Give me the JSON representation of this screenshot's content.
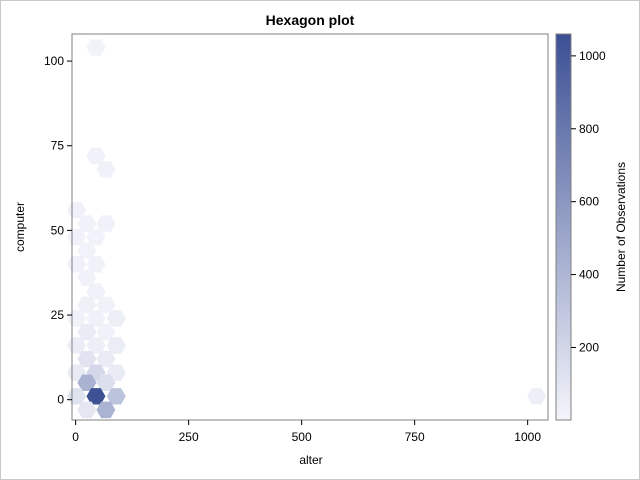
{
  "chart_data": {
    "type": "hexbin",
    "title": "Hexagon plot",
    "xlabel": "alter",
    "ylabel": "computer",
    "xlim": [
      -8,
      1045
    ],
    "ylim": [
      -6,
      108
    ],
    "xticks": [
      0,
      250,
      500,
      750,
      1000
    ],
    "yticks": [
      0,
      25,
      50,
      75,
      100
    ],
    "colorbar": {
      "label": "Number of Observations",
      "range": [
        1,
        1060
      ],
      "ticks": [
        200,
        400,
        600,
        800,
        1000
      ],
      "low_color": "#f4f5fb",
      "high_color": "#3b4f94"
    },
    "bins": [
      {
        "x": 45,
        "y": 104,
        "count": 15
      },
      {
        "x": 45,
        "y": 72,
        "count": 25
      },
      {
        "x": 67,
        "y": 68,
        "count": 25
      },
      {
        "x": 2,
        "y": 56,
        "count": 30
      },
      {
        "x": 25,
        "y": 52,
        "count": 20
      },
      {
        "x": 67,
        "y": 52,
        "count": 25
      },
      {
        "x": 2,
        "y": 48,
        "count": 20
      },
      {
        "x": 45,
        "y": 48,
        "count": 15
      },
      {
        "x": 25,
        "y": 44,
        "count": 15
      },
      {
        "x": 2,
        "y": 40,
        "count": 30
      },
      {
        "x": 45,
        "y": 40,
        "count": 20
      },
      {
        "x": 25,
        "y": 36,
        "count": 20
      },
      {
        "x": 45,
        "y": 32,
        "count": 20
      },
      {
        "x": 25,
        "y": 28,
        "count": 35
      },
      {
        "x": 67,
        "y": 28,
        "count": 25
      },
      {
        "x": 2,
        "y": 24,
        "count": 20
      },
      {
        "x": 45,
        "y": 24,
        "count": 30
      },
      {
        "x": 90,
        "y": 24,
        "count": 40
      },
      {
        "x": 25,
        "y": 20,
        "count": 60
      },
      {
        "x": 67,
        "y": 20,
        "count": 25
      },
      {
        "x": 2,
        "y": 16,
        "count": 50
      },
      {
        "x": 45,
        "y": 16,
        "count": 40
      },
      {
        "x": 90,
        "y": 16,
        "count": 50
      },
      {
        "x": 25,
        "y": 12,
        "count": 110
      },
      {
        "x": 67,
        "y": 12,
        "count": 60
      },
      {
        "x": 2,
        "y": 8,
        "count": 70
      },
      {
        "x": 45,
        "y": 8,
        "count": 190
      },
      {
        "x": 90,
        "y": 8,
        "count": 60
      },
      {
        "x": 25,
        "y": 5,
        "count": 430
      },
      {
        "x": 67,
        "y": 5,
        "count": 140
      },
      {
        "x": 2,
        "y": 1,
        "count": 120
      },
      {
        "x": 45,
        "y": 1,
        "count": 1050
      },
      {
        "x": 90,
        "y": 1,
        "count": 320
      },
      {
        "x": 25,
        "y": -3,
        "count": 90
      },
      {
        "x": 67,
        "y": -3,
        "count": 420
      },
      {
        "x": 1020,
        "y": 1,
        "count": 40
      }
    ]
  }
}
